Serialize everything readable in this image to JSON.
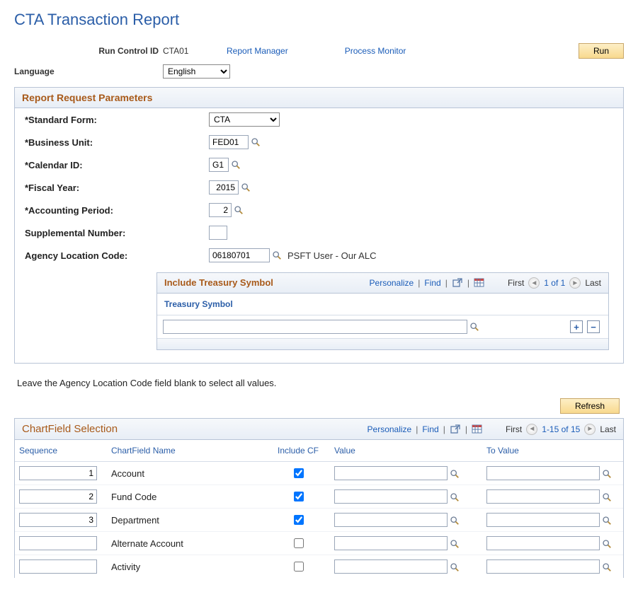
{
  "page_title": "CTA Transaction Report",
  "topbar": {
    "run_control_label": "Run Control ID",
    "run_control_value": "CTA01",
    "report_manager": "Report Manager",
    "process_monitor": "Process Monitor",
    "run_button": "Run",
    "language_label": "Language",
    "language_value": "English"
  },
  "panel1": {
    "title": "Report Request Parameters",
    "fields": {
      "standard_form": {
        "label": "*Standard Form:",
        "value": "CTA"
      },
      "business_unit": {
        "label": "*Business Unit:",
        "value": "FED01"
      },
      "calendar_id": {
        "label": "*Calendar ID:",
        "value": "G1"
      },
      "fiscal_year": {
        "label": "*Fiscal Year:",
        "value": "2015"
      },
      "accounting_period": {
        "label": "*Accounting Period:",
        "value": "2"
      },
      "supplemental_number": {
        "label": "Supplemental Number:",
        "value": ""
      },
      "agency_location_code": {
        "label": "Agency Location Code:",
        "value": "06180701",
        "desc": "PSFT User - Our ALC"
      }
    },
    "treasury": {
      "title": "Include Treasury Symbol",
      "personalize": "Personalize",
      "find": "Find",
      "first": "First",
      "count": "1 of 1",
      "last": "Last",
      "column": "Treasury Symbol",
      "value": ""
    }
  },
  "hint": "Leave the Agency Location Code field blank to select all values.",
  "refresh": "Refresh",
  "cf": {
    "title": "ChartField Selection",
    "personalize": "Personalize",
    "find": "Find",
    "first": "First",
    "count": "1-15 of 15",
    "last": "Last",
    "columns": {
      "sequence": "Sequence",
      "name": "ChartField Name",
      "include": "Include CF",
      "value": "Value",
      "to_value": "To Value"
    },
    "rows": [
      {
        "seq": "1",
        "name": "Account",
        "include": true,
        "value": "",
        "to_value": ""
      },
      {
        "seq": "2",
        "name": "Fund Code",
        "include": true,
        "value": "",
        "to_value": ""
      },
      {
        "seq": "3",
        "name": "Department",
        "include": true,
        "value": "",
        "to_value": ""
      },
      {
        "seq": "",
        "name": "Alternate Account",
        "include": false,
        "value": "",
        "to_value": ""
      },
      {
        "seq": "",
        "name": "Activity",
        "include": false,
        "value": "",
        "to_value": ""
      }
    ]
  }
}
